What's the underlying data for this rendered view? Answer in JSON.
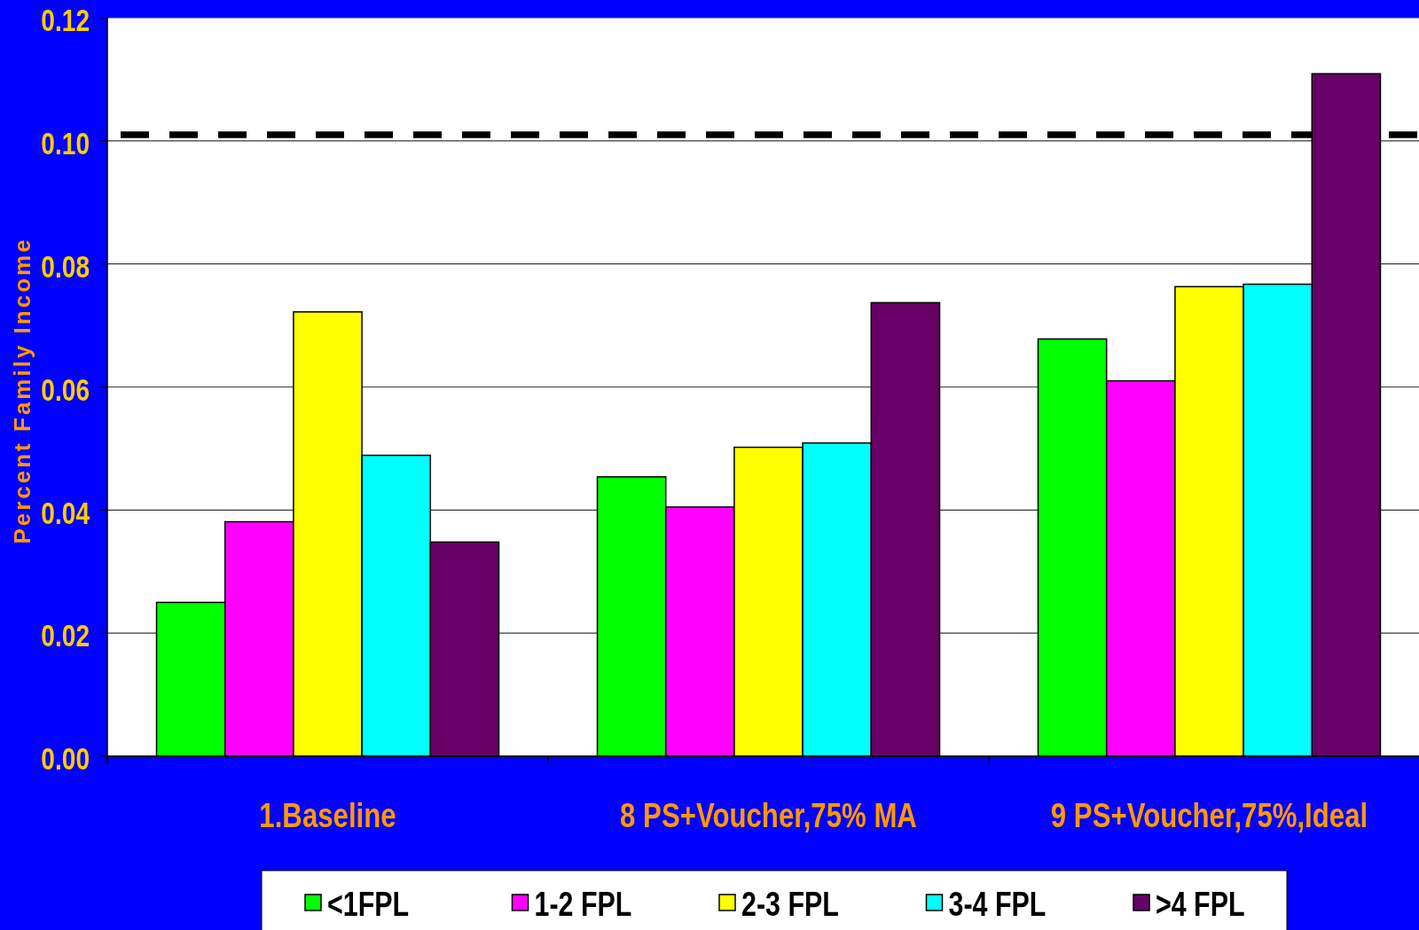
{
  "chart_data": {
    "type": "bar",
    "ylabel": "Percent Family Income",
    "categories": [
      "1.Baseline",
      "8 PS+Voucher,75% MA",
      "9 PS+Voucher,75%,Ideal"
    ],
    "series": [
      {
        "name": "<1FPL",
        "color": "#00ff00",
        "values": [
          0.025,
          0.0454,
          0.0678
        ]
      },
      {
        "name": "1-2 FPL",
        "color": "#ff00ff",
        "values": [
          0.0381,
          0.0405,
          0.061
        ]
      },
      {
        "name": "2-3 FPL",
        "color": "#ffff00",
        "values": [
          0.0722,
          0.0502,
          0.0763
        ]
      },
      {
        "name": "3-4 FPL",
        "color": "#00ffff",
        "values": [
          0.0489,
          0.0509,
          0.0767
        ]
      },
      {
        "name": ">4 FPL",
        "color": "#660066",
        "values": [
          0.0348,
          0.0737,
          0.1109
        ]
      }
    ],
    "ylim": [
      0,
      0.12
    ],
    "yticks": [
      {
        "value": 0,
        "label": "0.00"
      },
      {
        "value": 0.02,
        "label": "0.02"
      },
      {
        "value": 0.04,
        "label": "0.04"
      },
      {
        "value": 0.06,
        "label": "0.06"
      },
      {
        "value": 0.08,
        "label": "0.08"
      },
      {
        "value": 0.1,
        "label": "0.10"
      },
      {
        "value": 0.12,
        "label": "0.12"
      }
    ],
    "grid": "y",
    "legend": "bottom",
    "ref_lines": [
      {
        "axis": "y",
        "value": 0.101,
        "line_style": "dashed",
        "color": "#000000"
      }
    ]
  }
}
